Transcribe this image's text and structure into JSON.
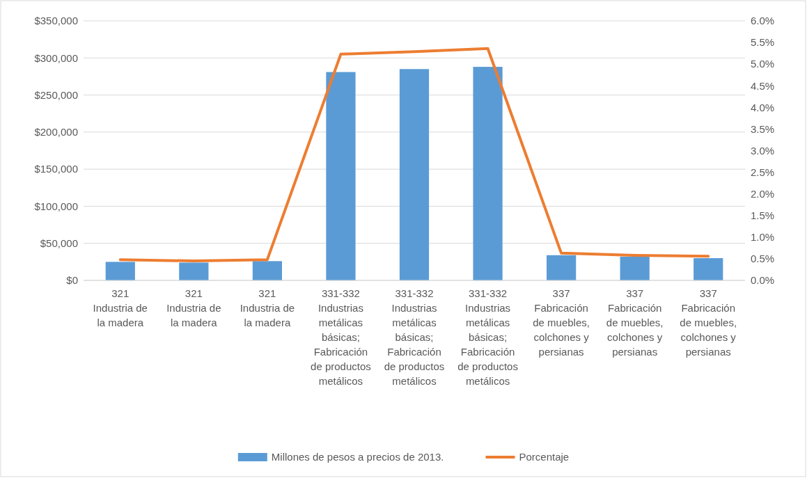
{
  "chart_data": {
    "type": "bar",
    "categories": [
      "321\nIndustria de la madera",
      "321\nIndustria de la madera",
      "321\nIndustria de la madera",
      "331-332\nIndustrias metálicas básicas; Fabricación de productos metálicos",
      "331-332\nIndustrias metálicas básicas; Fabricación de productos metálicos",
      "331-332\nIndustrias metálicas básicas; Fabricación de productos metálicos",
      "337\nFabricación de muebles, colchones y persianas",
      "337\nFabricación de muebles, colchones y persianas",
      "337\nFabricación de muebles, colchones y persianas"
    ],
    "series": [
      {
        "name": "Millones de pesos a precios de 2013.",
        "color": "#5b9bd5",
        "values": [
          25000,
          24000,
          26000,
          281000,
          285000,
          288000,
          34000,
          32000,
          30000
        ]
      },
      {
        "name": "Porcentaje",
        "type": "line",
        "axis": "y2",
        "color": "#ed7d31",
        "values": [
          0.48,
          0.45,
          0.48,
          5.23,
          5.29,
          5.36,
          0.63,
          0.58,
          0.56
        ]
      }
    ],
    "ylim": [
      0,
      350000
    ],
    "yticks": [
      {
        "value": 0,
        "label": "$0"
      },
      {
        "value": 50000,
        "label": "$50,000"
      },
      {
        "value": 100000,
        "label": "$100,000"
      },
      {
        "value": 150000,
        "label": "$150,000"
      },
      {
        "value": 200000,
        "label": "$200,000"
      },
      {
        "value": 250000,
        "label": "$250,000"
      },
      {
        "value": 300000,
        "label": "$300,000"
      },
      {
        "value": 350000,
        "label": "$350,000"
      }
    ],
    "y2lim": [
      0,
      6
    ],
    "y2ticks": [
      {
        "value": 0,
        "label": "0.0%"
      },
      {
        "value": 0.5,
        "label": "0.5%"
      },
      {
        "value": 1,
        "label": "1.0%"
      },
      {
        "value": 1.5,
        "label": "1.5%"
      },
      {
        "value": 2,
        "label": "2.0%"
      },
      {
        "value": 2.5,
        "label": "2.5%"
      },
      {
        "value": 3,
        "label": "3.0%"
      },
      {
        "value": 3.5,
        "label": "3.5%"
      },
      {
        "value": 4,
        "label": "4.0%"
      },
      {
        "value": 4.5,
        "label": "4.5%"
      },
      {
        "value": 5,
        "label": "5.0%"
      },
      {
        "value": 5.5,
        "label": "5.5%"
      },
      {
        "value": 6,
        "label": "6.0%"
      }
    ],
    "grid": "y",
    "legend": "bottom",
    "marker": "none",
    "line_style": "solid"
  }
}
